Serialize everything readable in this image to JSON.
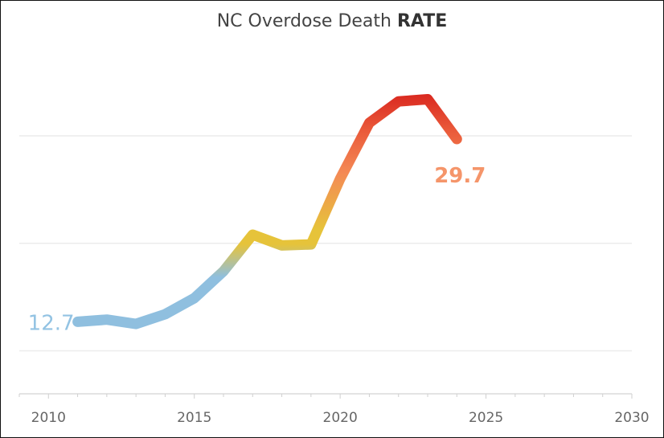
{
  "title": {
    "prefix": "NC Overdose Death ",
    "emphasis": "RATE"
  },
  "chart_data": {
    "type": "line",
    "title": "NC Overdose Death RATE",
    "xlabel": "",
    "ylabel": "",
    "x": [
      2011,
      2012,
      2013,
      2014,
      2015,
      2016,
      2017,
      2018,
      2019,
      2020,
      2021,
      2022,
      2023,
      2024
    ],
    "series": [
      {
        "values": [
          12.7,
          12.9,
          12.5,
          13.4,
          14.9,
          17.4,
          20.8,
          19.8,
          19.9,
          26.0,
          31.2,
          33.2,
          33.4,
          29.7
        ]
      }
    ],
    "xlim": [
      2009,
      2030
    ],
    "ylim": [
      6,
      38
    ],
    "gridlines_y": [
      10,
      20,
      30
    ],
    "grid_y": true,
    "xticks": [
      2010,
      2015,
      2020,
      2025,
      2030
    ],
    "data_labels": [
      {
        "x": 2011,
        "text": "12.7",
        "color": "#93c3e3"
      },
      {
        "x": 2024,
        "text": "29.7",
        "color": "#f5956a"
      }
    ],
    "line_colors": {
      "low": "#8fbfdf",
      "mid": "#e6c33a",
      "high": "#f48a55",
      "peak": "#d9271f"
    }
  }
}
